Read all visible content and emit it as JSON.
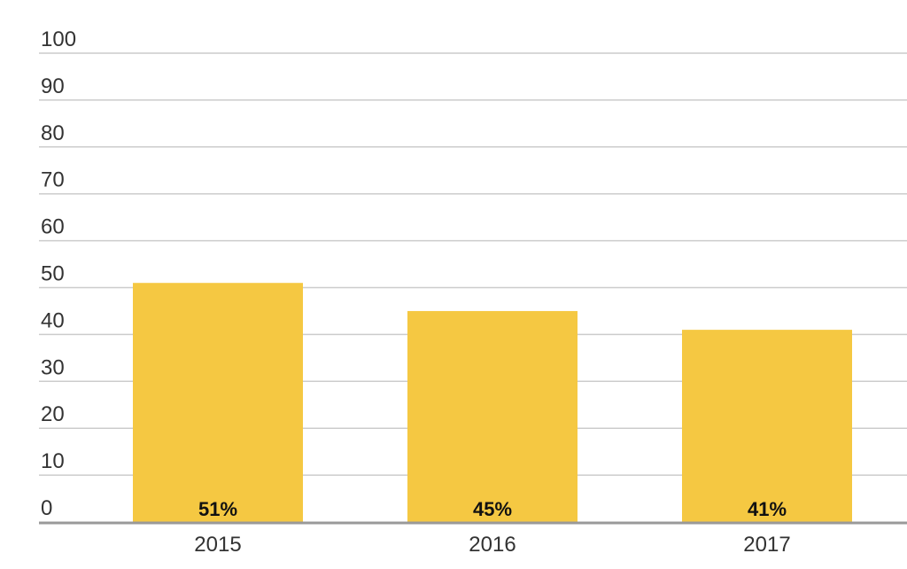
{
  "chart_data": {
    "type": "bar",
    "categories": [
      "2015",
      "2016",
      "2017"
    ],
    "values": [
      51,
      45,
      41
    ],
    "data_labels": [
      "51%",
      "45%",
      "41%"
    ],
    "ylim": [
      0,
      100
    ],
    "yticks": [
      0,
      10,
      20,
      30,
      40,
      50,
      60,
      70,
      80,
      90,
      100
    ],
    "ytick_labels": [
      "0",
      "10",
      "20",
      "30",
      "40",
      "50",
      "60",
      "70",
      "80",
      "90",
      "100"
    ],
    "grid": true,
    "legend": "none",
    "colors": {
      "bar": "#F5C842",
      "grid": "#CCCCCC",
      "axis": "#999999"
    }
  }
}
